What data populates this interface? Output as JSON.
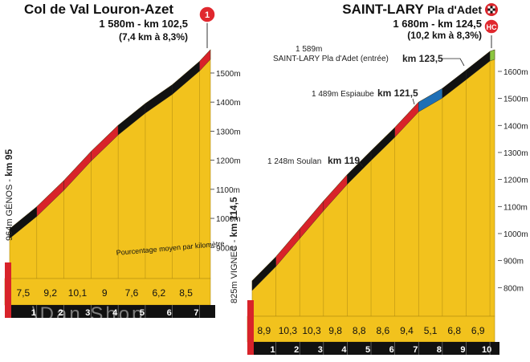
{
  "chart_data": [
    {
      "type": "area",
      "title": "Col de Val Louron-Azet",
      "subtitle": "1 580m - km 102,5",
      "detail": "(7,4 km à 8,3%)",
      "start_label": "964m GÉNOS",
      "start_km_label": "km 95",
      "note": "Pourcentage moyen par kilomètre",
      "categories": [
        "1",
        "2",
        "3",
        "4",
        "5",
        "6",
        "7"
      ],
      "gradients": [
        "7,5",
        "9,2",
        "10,1",
        "9",
        "7,6",
        "6,2",
        "8,5"
      ],
      "y_ticks": [
        "900m",
        "1000m",
        "1100m",
        "1200m",
        "1300m",
        "1400m",
        "1500m"
      ],
      "ylim": [
        840,
        1580
      ],
      "x": [
        0,
        1,
        2,
        3,
        4,
        5,
        6,
        7,
        7.4
      ],
      "y": [
        964,
        1040,
        1130,
        1230,
        1320,
        1395,
        1460,
        1540,
        1580
      ],
      "badge": "1",
      "colors": {
        "fill": "#f2c21d",
        "steep": "#d8232a",
        "moderate": "#111111",
        "summit": "#d8232a"
      }
    },
    {
      "type": "area",
      "title": "SAINT-LARY",
      "title_suffix": "Pla d'Adet",
      "subtitle": "1 680m - km 124,5",
      "detail": "(10,2 km à 8,3%)",
      "start_label": "825m VIGNEC",
      "start_km_label": "km 114,5",
      "categories": [
        "1",
        "2",
        "3",
        "4",
        "5",
        "6",
        "7",
        "8",
        "9",
        "10"
      ],
      "gradients": [
        "8,9",
        "10,3",
        "10,3",
        "9,8",
        "8,8",
        "8,6",
        "9,4",
        "5,1",
        "6,8",
        "6,9"
      ],
      "y_ticks": [
        "800m",
        "900m",
        "1000m",
        "1100m",
        "1200m",
        "1300m",
        "1400m",
        "1500m",
        "1600m"
      ],
      "ylim": [
        700,
        1680
      ],
      "x": [
        0,
        1,
        2,
        3,
        4,
        5,
        6,
        7,
        8,
        9,
        10,
        10.2
      ],
      "y": [
        825,
        914,
        1017,
        1120,
        1218,
        1306,
        1392,
        1486,
        1537,
        1605,
        1674,
        1680
      ],
      "annotations": [
        {
          "alt": "1 248m Soulan",
          "km": "km 119"
        },
        {
          "alt": "1 489m Espiaube",
          "km": "km 121,5"
        },
        {
          "alt": "1 589m",
          "alt2": "SAINT-LARY Pla d'Adet (entrée)",
          "km": "km 123,5"
        }
      ],
      "badge": "HC",
      "colors": {
        "fill": "#f2c21d",
        "steep": "#d8232a",
        "moderate": "#111111",
        "easy": "#1f6fb5",
        "summit": "#8dc63f"
      }
    }
  ],
  "watermark": "\\Dan Shop"
}
